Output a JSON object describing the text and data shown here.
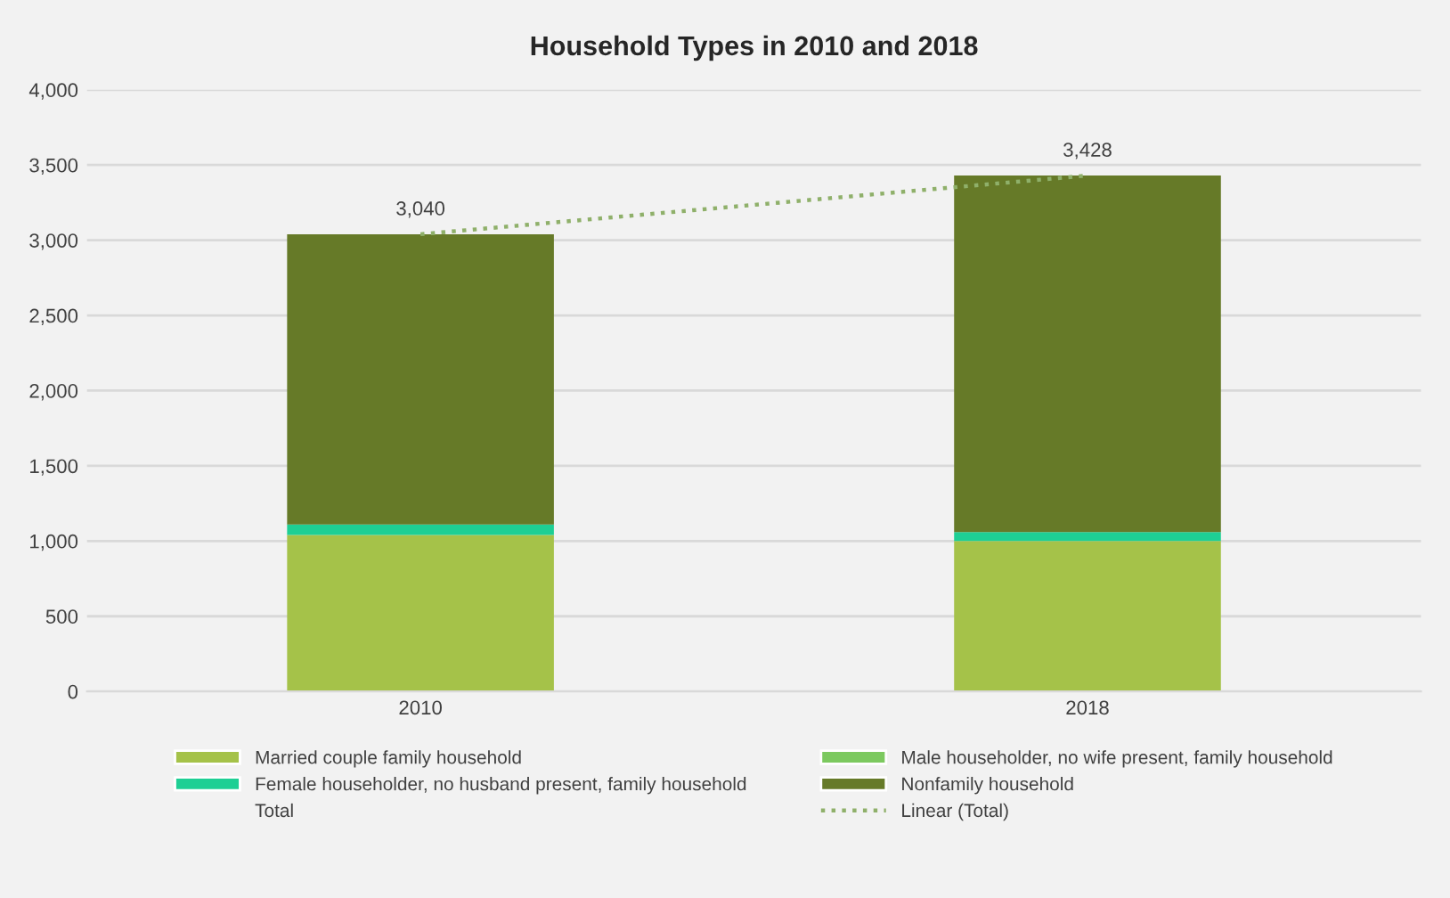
{
  "chart_data": {
    "type": "bar",
    "stacked": true,
    "title": "Household Types in 2010 and 2018",
    "categories": [
      "2010",
      "2018"
    ],
    "series": [
      {
        "name": "Married couple family household",
        "color": "#a5c249",
        "values": [
          1040,
          1000
        ]
      },
      {
        "name": "Male householder, no wife present, family household",
        "color": "#7cc95f",
        "values": [
          0,
          0
        ]
      },
      {
        "name": "Female householder, no husband present, family household",
        "color": "#1ecf94",
        "values": [
          70,
          60
        ]
      },
      {
        "name": "Nonfamily household",
        "color": "#667a28",
        "values": [
          1930,
          2370
        ]
      },
      {
        "name": "Linear (Total)",
        "type": "line",
        "line_style": "dotted",
        "color": "#8fb06a",
        "values": [
          3040,
          3430
        ]
      }
    ],
    "totals": [
      "3,040",
      "3,428"
    ],
    "annotations": [
      "Total"
    ],
    "ylim": [
      0,
      4000
    ],
    "yticks": [
      {
        "value": 0,
        "label": "0"
      },
      {
        "value": 500,
        "label": "500"
      },
      {
        "value": 1000,
        "label": "1,000"
      },
      {
        "value": 1500,
        "label": "1,500"
      },
      {
        "value": 2000,
        "label": "2,000"
      },
      {
        "value": 2500,
        "label": "2,500"
      },
      {
        "value": 3000,
        "label": "3,000"
      },
      {
        "value": 3500,
        "label": "3,500"
      },
      {
        "value": 4000,
        "label": "4,000"
      }
    ],
    "grid": "y",
    "legend": "bottom"
  }
}
